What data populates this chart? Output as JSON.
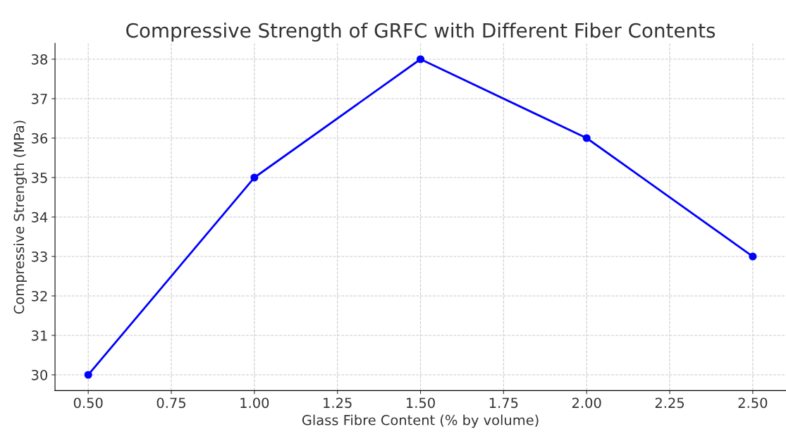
{
  "chart_data": {
    "type": "line",
    "title": "Compressive Strength of GRFC with Different Fiber Contents",
    "xlabel": "Glass Fibre Content (% by volume)",
    "ylabel": "Compressive Strength (MPa)",
    "x": [
      0.5,
      1.0,
      1.5,
      2.0,
      2.5
    ],
    "series": [
      {
        "color": "#0000ff",
        "values": [
          30,
          35,
          38,
          36,
          33
        ]
      }
    ],
    "xlim": [
      0.4,
      2.6
    ],
    "ylim": [
      29.6,
      38.4
    ],
    "xticks": [
      {
        "value": 0.5,
        "label": "0.50"
      },
      {
        "value": 0.75,
        "label": "0.75"
      },
      {
        "value": 1.0,
        "label": "1.00"
      },
      {
        "value": 1.25,
        "label": "1.25"
      },
      {
        "value": 1.5,
        "label": "1.50"
      },
      {
        "value": 1.75,
        "label": "1.75"
      },
      {
        "value": 2.0,
        "label": "2.00"
      },
      {
        "value": 2.25,
        "label": "2.25"
      },
      {
        "value": 2.5,
        "label": "2.50"
      }
    ],
    "yticks": [
      30,
      31,
      32,
      33,
      34,
      35,
      36,
      37,
      38
    ],
    "grid": true,
    "marker": "circle",
    "line_style": "solid",
    "legend": false
  }
}
